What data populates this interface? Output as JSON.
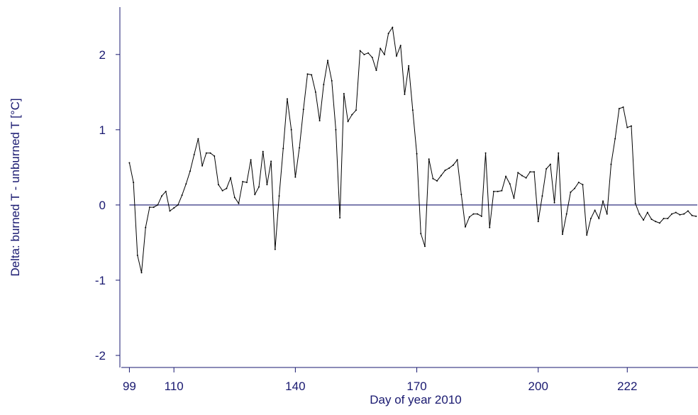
{
  "chart_data": {
    "type": "line",
    "x_label": "Day of year 2010",
    "y_label": "Delta: burned T - unburned T [°C]",
    "x": [
      99,
      100,
      101,
      102,
      103,
      104,
      105,
      106,
      107,
      108,
      109,
      110,
      111,
      112,
      113,
      114,
      115,
      116,
      117,
      118,
      119,
      120,
      121,
      122,
      123,
      124,
      125,
      126,
      127,
      128,
      129,
      130,
      131,
      132,
      133,
      134,
      135,
      136,
      137,
      138,
      139,
      140,
      141,
      142,
      143,
      144,
      145,
      146,
      147,
      148,
      149,
      150,
      151,
      152,
      153,
      154,
      155,
      156,
      157,
      158,
      159,
      160,
      161,
      162,
      163,
      164,
      165,
      166,
      167,
      168,
      169,
      170,
      171,
      172,
      173,
      174,
      175,
      176,
      177,
      178,
      179,
      180,
      181,
      182,
      183,
      184,
      185,
      186,
      187,
      188,
      189,
      190,
      191,
      192,
      193,
      194,
      195,
      196,
      197,
      198,
      199,
      200,
      201,
      202,
      203,
      204,
      205,
      206,
      207,
      208,
      209,
      210,
      211,
      212,
      213,
      214,
      215,
      216,
      217,
      218,
      219,
      220,
      221,
      222,
      223,
      224,
      225,
      226,
      227,
      228,
      229,
      230,
      231,
      232,
      233,
      234,
      235,
      236,
      237,
      238,
      239
    ],
    "series": [
      {
        "color": "#000000",
        "values": [
          0.56,
          0.3,
          -0.67,
          -0.9,
          -0.3,
          -0.03,
          -0.03,
          0.0,
          0.12,
          0.18,
          -0.08,
          -0.04,
          0.0,
          0.13,
          0.28,
          0.45,
          0.67,
          0.88,
          0.52,
          0.69,
          0.69,
          0.65,
          0.27,
          0.19,
          0.22,
          0.36,
          0.1,
          0.02,
          0.31,
          0.3,
          0.6,
          0.14,
          0.24,
          0.71,
          0.27,
          0.58,
          -0.59,
          0.12,
          0.75,
          1.41,
          1.0,
          0.37,
          0.76,
          1.27,
          1.74,
          1.73,
          1.5,
          1.12,
          1.6,
          1.92,
          1.65,
          1.0,
          -0.17,
          1.48,
          1.11,
          1.2,
          1.26,
          2.05,
          2.0,
          2.02,
          1.96,
          1.79,
          2.08,
          2.0,
          2.28,
          2.36,
          1.98,
          2.12,
          1.47,
          1.85,
          1.26,
          0.68,
          -0.38,
          -0.55,
          0.61,
          0.35,
          0.32,
          0.39,
          0.46,
          0.49,
          0.53,
          0.6,
          0.14,
          -0.29,
          -0.16,
          -0.12,
          -0.12,
          -0.15,
          0.69,
          -0.3,
          0.18,
          0.18,
          0.19,
          0.38,
          0.28,
          0.09,
          0.43,
          0.39,
          0.36,
          0.44,
          0.44,
          -0.22,
          0.12,
          0.48,
          0.54,
          0.03,
          0.69,
          -0.39,
          -0.12,
          0.17,
          0.22,
          0.3,
          0.27,
          -0.4,
          -0.18,
          -0.07,
          -0.18,
          0.05,
          -0.12,
          0.54,
          0.88,
          1.28,
          1.3,
          1.03,
          1.05,
          0.02,
          -0.12,
          -0.2,
          -0.1,
          -0.19,
          -0.22,
          -0.24,
          -0.18,
          -0.18,
          -0.12,
          -0.1,
          -0.13,
          -0.12,
          -0.08,
          -0.14,
          -0.15
        ]
      }
    ],
    "reference_line": 0,
    "axis_color": "#191970",
    "xlim": [
      97,
      239.3
    ],
    "xticks": [
      99,
      110,
      140,
      170,
      200,
      222
    ],
    "ylim": [
      -2.16,
      2.63
    ],
    "yticks": [
      -2,
      -1,
      0,
      1,
      2
    ]
  }
}
